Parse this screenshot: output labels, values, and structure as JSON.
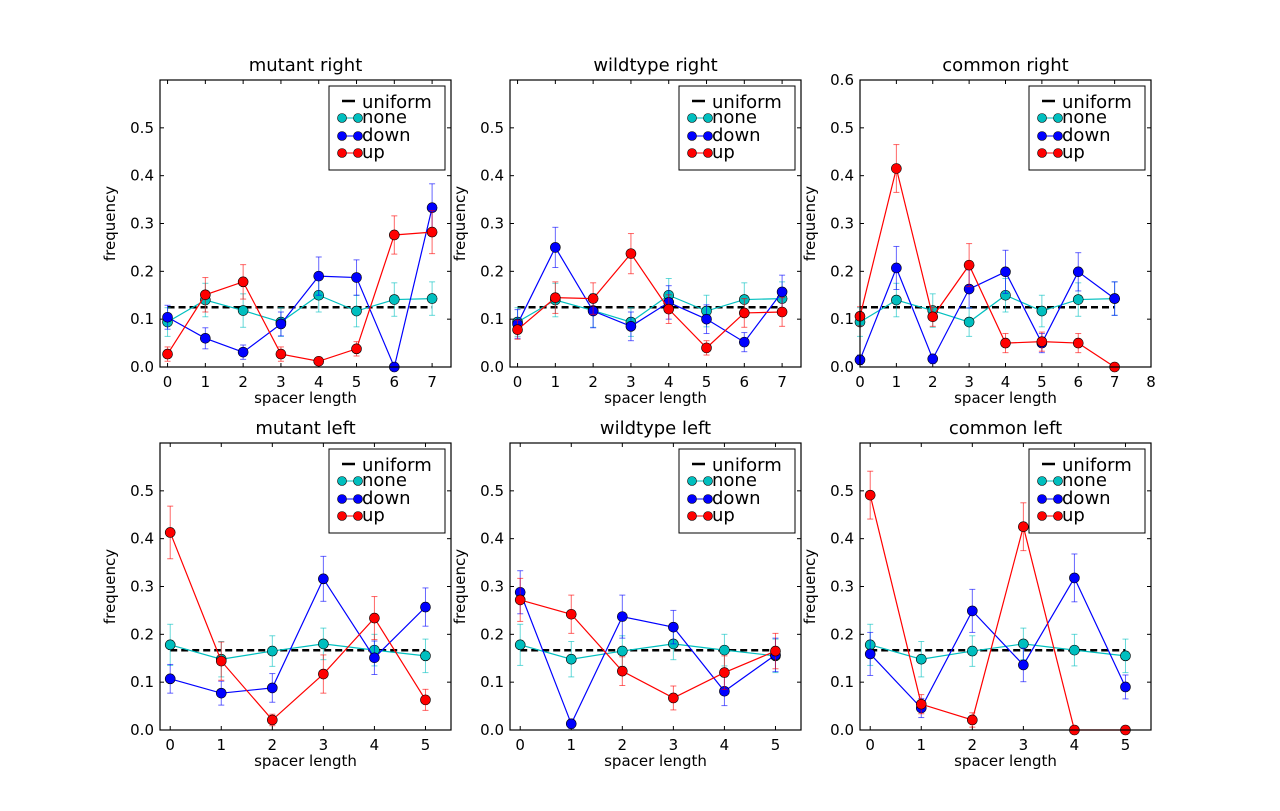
{
  "chart_data": [
    {
      "type": "line",
      "title": "mutant right",
      "xlabel": "spacer length",
      "ylabel": "frequency",
      "xlim": [
        -0.2,
        7.5
      ],
      "ylim": [
        0,
        0.6
      ],
      "xticks": [
        0,
        1,
        2,
        3,
        4,
        5,
        6,
        7
      ],
      "yticks": [
        0,
        0.1,
        0.2,
        0.3,
        0.4,
        0.5
      ],
      "legend": "top-right",
      "x": [
        0,
        1,
        2,
        3,
        4,
        5,
        6,
        7
      ],
      "uniform": 0.125,
      "series": [
        {
          "name": "none",
          "color": "#00BFBF",
          "values": [
            0.094,
            0.14,
            0.118,
            0.094,
            0.15,
            0.117,
            0.141,
            0.143
          ],
          "err": [
            0.03,
            0.035,
            0.035,
            0.03,
            0.035,
            0.033,
            0.035,
            0.035
          ]
        },
        {
          "name": "down",
          "color": "#0000FF",
          "values": [
            0.104,
            0.06,
            0.031,
            0.09,
            0.19,
            0.187,
            0.0,
            0.333
          ],
          "err": [
            0.025,
            0.022,
            0.015,
            0.025,
            0.04,
            0.037,
            0,
            0.05
          ]
        },
        {
          "name": "up",
          "color": "#FF0000",
          "values": [
            0.027,
            0.151,
            0.178,
            0.027,
            0.012,
            0.038,
            0.276,
            0.282
          ],
          "err": [
            0.015,
            0.036,
            0.036,
            0.015,
            0.008,
            0.015,
            0.04,
            0.045
          ]
        }
      ]
    },
    {
      "type": "line",
      "title": "wildtype right",
      "xlabel": "spacer length",
      "ylabel": "frequency",
      "xlim": [
        -0.2,
        7.5
      ],
      "ylim": [
        0,
        0.6
      ],
      "xticks": [
        0,
        1,
        2,
        3,
        4,
        5,
        6,
        7
      ],
      "yticks": [
        0,
        0.1,
        0.2,
        0.3,
        0.4,
        0.5
      ],
      "legend": "top-right",
      "x": [
        0,
        1,
        2,
        3,
        4,
        5,
        6,
        7
      ],
      "uniform": 0.125,
      "series": [
        {
          "name": "none",
          "color": "#00BFBF",
          "values": [
            0.094,
            0.14,
            0.118,
            0.094,
            0.15,
            0.117,
            0.141,
            0.143
          ],
          "err": [
            0.03,
            0.035,
            0.035,
            0.03,
            0.035,
            0.033,
            0.035,
            0.035
          ]
        },
        {
          "name": "down",
          "color": "#0000FF",
          "values": [
            0.09,
            0.25,
            0.117,
            0.085,
            0.135,
            0.1,
            0.052,
            0.157
          ],
          "err": [
            0.03,
            0.042,
            0.035,
            0.03,
            0.035,
            0.03,
            0.02,
            0.035
          ]
        },
        {
          "name": "up",
          "color": "#FF0000",
          "values": [
            0.078,
            0.145,
            0.143,
            0.237,
            0.121,
            0.04,
            0.113,
            0.115
          ],
          "err": [
            0.02,
            0.033,
            0.033,
            0.042,
            0.03,
            0.015,
            0.03,
            0.03
          ]
        }
      ]
    },
    {
      "type": "line",
      "title": "common right",
      "xlabel": "spacer length",
      "ylabel": "frequency",
      "xlim": [
        0,
        8
      ],
      "ylim": [
        0,
        0.6
      ],
      "xticks": [
        0,
        1,
        2,
        3,
        4,
        5,
        6,
        7,
        8
      ],
      "yticks": [
        0,
        0.1,
        0.2,
        0.3,
        0.4,
        0.5,
        0.6
      ],
      "legend": "top-right",
      "x": [
        0,
        1,
        2,
        3,
        4,
        5,
        6,
        7
      ],
      "uniform": 0.125,
      "series": [
        {
          "name": "none",
          "color": "#00BFBF",
          "values": [
            0.094,
            0.14,
            0.118,
            0.094,
            0.15,
            0.117,
            0.141,
            0.143
          ],
          "err": [
            0.03,
            0.035,
            0.035,
            0.03,
            0.035,
            0.033,
            0.035,
            0.035
          ]
        },
        {
          "name": "down",
          "color": "#0000FF",
          "values": [
            0.015,
            0.207,
            0.017,
            0.163,
            0.199,
            0.05,
            0.199,
            0.143
          ],
          "err": [
            0.01,
            0.045,
            0.01,
            0.04,
            0.045,
            0.02,
            0.04,
            0.035
          ]
        },
        {
          "name": "up",
          "color": "#FF0000",
          "values": [
            0.106,
            0.415,
            0.105,
            0.213,
            0.05,
            0.053,
            0.05,
            0.0
          ],
          "err": [
            0.02,
            0.05,
            0.02,
            0.045,
            0.02,
            0.02,
            0.02,
            0
          ]
        }
      ]
    },
    {
      "type": "line",
      "title": "mutant left",
      "xlabel": "spacer length",
      "ylabel": "frequency",
      "xlim": [
        -0.2,
        5.5
      ],
      "ylim": [
        0,
        0.6
      ],
      "xticks": [
        0,
        1,
        2,
        3,
        4,
        5
      ],
      "yticks": [
        0,
        0.1,
        0.2,
        0.3,
        0.4,
        0.5
      ],
      "legend": "top-right",
      "x": [
        0,
        1,
        2,
        3,
        4,
        5
      ],
      "uniform": 0.1667,
      "series": [
        {
          "name": "none",
          "color": "#00BFBF",
          "values": [
            0.178,
            0.148,
            0.165,
            0.18,
            0.167,
            0.155
          ],
          "err": [
            0.043,
            0.037,
            0.032,
            0.033,
            0.033,
            0.035
          ]
        },
        {
          "name": "down",
          "color": "#0000FF",
          "values": [
            0.107,
            0.077,
            0.088,
            0.316,
            0.151,
            0.257
          ],
          "err": [
            0.03,
            0.025,
            0.03,
            0.047,
            0.035,
            0.04
          ]
        },
        {
          "name": "up",
          "color": "#FF0000",
          "values": [
            0.413,
            0.144,
            0.021,
            0.117,
            0.234,
            0.063
          ],
          "err": [
            0.055,
            0.04,
            0.012,
            0.04,
            0.045,
            0.022
          ]
        }
      ]
    },
    {
      "type": "line",
      "title": "wildtype left",
      "xlabel": "spacer length",
      "ylabel": "frequency",
      "xlim": [
        -0.2,
        5.5
      ],
      "ylim": [
        0,
        0.6
      ],
      "xticks": [
        0,
        1,
        2,
        3,
        4,
        5
      ],
      "yticks": [
        0,
        0.1,
        0.2,
        0.3,
        0.4,
        0.5
      ],
      "legend": "top-right",
      "x": [
        0,
        1,
        2,
        3,
        4,
        5
      ],
      "uniform": 0.1667,
      "series": [
        {
          "name": "none",
          "color": "#00BFBF",
          "values": [
            0.178,
            0.148,
            0.165,
            0.18,
            0.167,
            0.155
          ],
          "err": [
            0.043,
            0.037,
            0.032,
            0.033,
            0.033,
            0.035
          ]
        },
        {
          "name": "down",
          "color": "#0000FF",
          "values": [
            0.288,
            0.013,
            0.237,
            0.215,
            0.081,
            0.157
          ],
          "err": [
            0.045,
            0.01,
            0.045,
            0.035,
            0.03,
            0.035
          ]
        },
        {
          "name": "up",
          "color": "#FF0000",
          "values": [
            0.272,
            0.242,
            0.123,
            0.067,
            0.12,
            0.165
          ],
          "err": [
            0.045,
            0.04,
            0.03,
            0.025,
            0.035,
            0.037
          ]
        }
      ]
    },
    {
      "type": "line",
      "title": "common left",
      "xlabel": "spacer length",
      "ylabel": "frequency",
      "xlim": [
        -0.2,
        5.5
      ],
      "ylim": [
        0,
        0.6
      ],
      "xticks": [
        0,
        1,
        2,
        3,
        4,
        5
      ],
      "yticks": [
        0,
        0.1,
        0.2,
        0.3,
        0.4,
        0.5
      ],
      "legend": "top-right",
      "x": [
        0,
        1,
        2,
        3,
        4,
        5
      ],
      "uniform": 0.1667,
      "series": [
        {
          "name": "none",
          "color": "#00BFBF",
          "values": [
            0.178,
            0.148,
            0.165,
            0.18,
            0.167,
            0.155
          ],
          "err": [
            0.043,
            0.037,
            0.032,
            0.033,
            0.033,
            0.035
          ]
        },
        {
          "name": "down",
          "color": "#0000FF",
          "values": [
            0.159,
            0.046,
            0.249,
            0.136,
            0.318,
            0.09
          ],
          "err": [
            0.045,
            0.02,
            0.045,
            0.035,
            0.05,
            0.025
          ]
        },
        {
          "name": "up",
          "color": "#FF0000",
          "values": [
            0.491,
            0.054,
            0.021,
            0.425,
            0.0,
            0.0
          ],
          "err": [
            0.05,
            0.02,
            0.015,
            0.05,
            0,
            0
          ]
        }
      ]
    }
  ],
  "legend_labels": {
    "uniform": "uniform",
    "none": "none",
    "down": "down",
    "up": "up"
  }
}
